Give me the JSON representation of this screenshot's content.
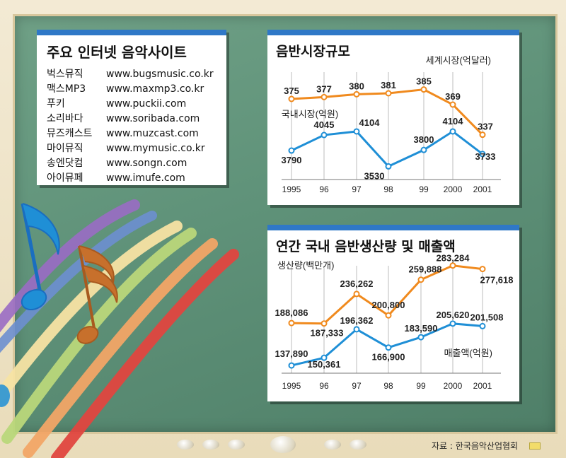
{
  "sites_box": {
    "title": "주요 인터넷 음악사이트",
    "items": [
      {
        "name": "벅스뮤직",
        "url": "www.bugsmusic.co.kr"
      },
      {
        "name": "맥스MP3",
        "url": "www.maxmp3.co.kr"
      },
      {
        "name": "푸키",
        "url": "www.puckii.com"
      },
      {
        "name": "소리바다",
        "url": "www.soribada.com"
      },
      {
        "name": "뮤즈캐스트",
        "url": "www.muzcast.com"
      },
      {
        "name": "마이뮤직",
        "url": "www.mymusic.co.kr"
      },
      {
        "name": "송엔닷컴",
        "url": "www.songn.com"
      },
      {
        "name": "아이뮤페",
        "url": "www.imufe.com"
      }
    ]
  },
  "colors": {
    "orange": "#f08a1e",
    "blue": "#1f8fd6",
    "panel_header": "#2f78c7"
  },
  "chart_data": [
    {
      "type": "line",
      "title": "음반시장규모",
      "categories": [
        "1995",
        "96",
        "97",
        "98",
        "99",
        "2000",
        "2001"
      ],
      "series": [
        {
          "name": "세계시장(억달러)",
          "color": "#f08a1e",
          "values": [
            375,
            377,
            380,
            381,
            385,
            369,
            337
          ],
          "labels": [
            "375",
            "377",
            "380",
            "381",
            "385",
            "369",
            "337"
          ]
        },
        {
          "name": "국내시장(억원)",
          "color": "#1f8fd6",
          "values": [
            3790,
            4045,
            4104,
            3530,
            3800,
            4104,
            3733
          ],
          "labels": [
            "3790",
            "4045",
            "4104",
            "3530",
            "3800",
            "4104",
            "3733"
          ]
        }
      ]
    },
    {
      "type": "line",
      "title": "연간 국내 음반생산량 및 매출액",
      "categories": [
        "1995",
        "96",
        "97",
        "98",
        "99",
        "2000",
        "2001"
      ],
      "series": [
        {
          "name": "생산량(백만개)",
          "color": "#f08a1e",
          "values": [
            188086,
            187333,
            236262,
            200800,
            259888,
            283284,
            277618
          ],
          "labels": [
            "188,086",
            "187,333",
            "236,262",
            "200,800",
            "259,888",
            "283,284",
            "277,618"
          ]
        },
        {
          "name": "매출액(억원)",
          "color": "#1f8fd6",
          "values": [
            137890,
            150361,
            196362,
            166900,
            183590,
            205620,
            201508
          ],
          "labels": [
            "137,890",
            "150,361",
            "196,362",
            "166,900",
            "183,590",
            "205,620",
            "201,508"
          ]
        }
      ]
    }
  ],
  "source": "자료 : 한국음악산업협회"
}
